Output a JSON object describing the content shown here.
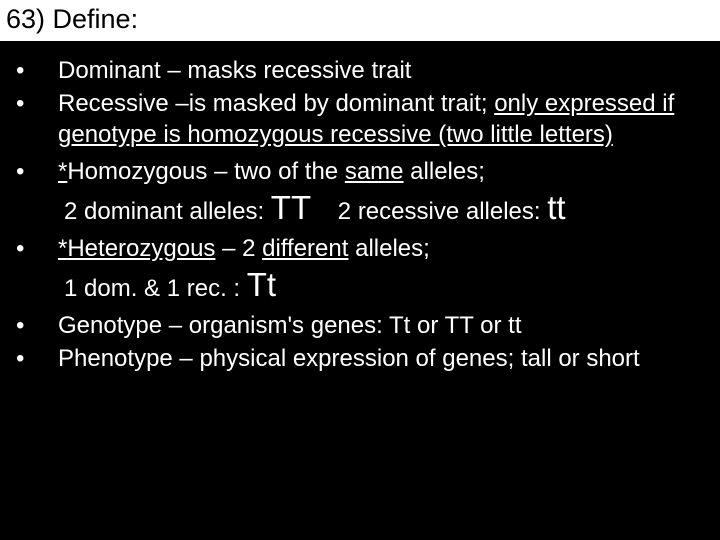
{
  "header": "63) Define:",
  "items": {
    "dominant": {
      "term": "Dominant",
      "def": " – masks recessive trait"
    },
    "recessive": {
      "term": "Recessive",
      "pre": " –is masked by dominant trait; ",
      "u": "only expressed if genotype is homozygous recessive (two little letters)"
    },
    "homozygous": {
      "star": "*",
      "term": "Homozygous",
      "mid": " – two of the ",
      "same": "same",
      "post": " alleles;",
      "ex_a_pre": "2 dominant alleles: ",
      "ex_a_big": "TT",
      "ex_b_pre": "2 recessive alleles: ",
      "ex_b_big": "tt"
    },
    "heterozygous": {
      "star": "*",
      "term": "Heterozygous",
      "mid": " – 2 ",
      "diff": "different",
      "post": " alleles;",
      "ex_pre": "1 dom. & 1 rec. : ",
      "ex_big": "Tt"
    },
    "genotype": {
      "term": "Genotype",
      "def": " – organism's genes: Tt or TT or tt"
    },
    "phenotype": {
      "term": "Phenotype",
      "def": " – physical expression of genes; tall or short"
    }
  },
  "colors": {
    "bg": "#000000",
    "text": "#ffffff",
    "header_bg": "#ffffff",
    "header_text": "#000000"
  }
}
